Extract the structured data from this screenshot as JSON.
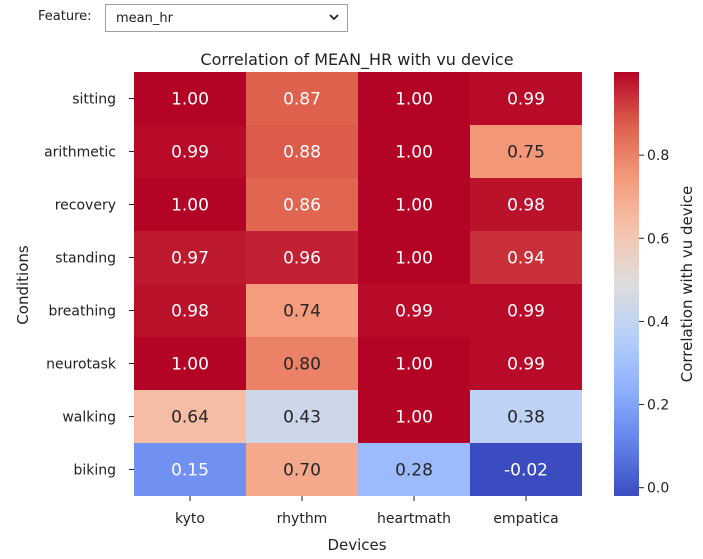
{
  "widget": {
    "feature_label": "Feature:",
    "feature_value": "mean_hr"
  },
  "chart_data": {
    "type": "heatmap",
    "title": "Correlation of MEAN_HR with vu device",
    "xlabel": "Devices",
    "ylabel": "Conditions",
    "colorbar_label": "Correlation with vu device",
    "colormap": "coolwarm",
    "vmin": -0.02,
    "vmax": 1.0,
    "colorbar_ticks": [
      "0.0",
      "0.2",
      "0.4",
      "0.6",
      "0.8"
    ],
    "colorbar_tick_values": [
      0.0,
      0.2,
      0.4,
      0.6,
      0.8
    ],
    "columns": [
      "kyto",
      "rhythm",
      "heartmath",
      "empatica"
    ],
    "rows": [
      "sitting",
      "arithmetic",
      "recovery",
      "standing",
      "breathing",
      "neurotask",
      "walking",
      "biking"
    ],
    "values": [
      [
        1.0,
        0.87,
        1.0,
        0.99
      ],
      [
        0.99,
        0.88,
        1.0,
        0.75
      ],
      [
        1.0,
        0.86,
        1.0,
        0.98
      ],
      [
        0.97,
        0.96,
        1.0,
        0.94
      ],
      [
        0.98,
        0.74,
        0.99,
        0.99
      ],
      [
        1.0,
        0.8,
        1.0,
        0.99
      ],
      [
        0.64,
        0.43,
        1.0,
        0.38
      ],
      [
        0.15,
        0.7,
        0.28,
        -0.02
      ]
    ],
    "labels": [
      [
        "1.00",
        "0.87",
        "1.00",
        "0.99"
      ],
      [
        "0.99",
        "0.88",
        "1.00",
        "0.75"
      ],
      [
        "1.00",
        "0.86",
        "1.00",
        "0.98"
      ],
      [
        "0.97",
        "0.96",
        "1.00",
        "0.94"
      ],
      [
        "0.98",
        "0.74",
        "0.99",
        "0.99"
      ],
      [
        "1.00",
        "0.80",
        "1.00",
        "0.99"
      ],
      [
        "0.64",
        "0.43",
        "1.00",
        "0.38"
      ],
      [
        "0.15",
        "0.70",
        "0.28",
        "-0.02"
      ]
    ]
  }
}
